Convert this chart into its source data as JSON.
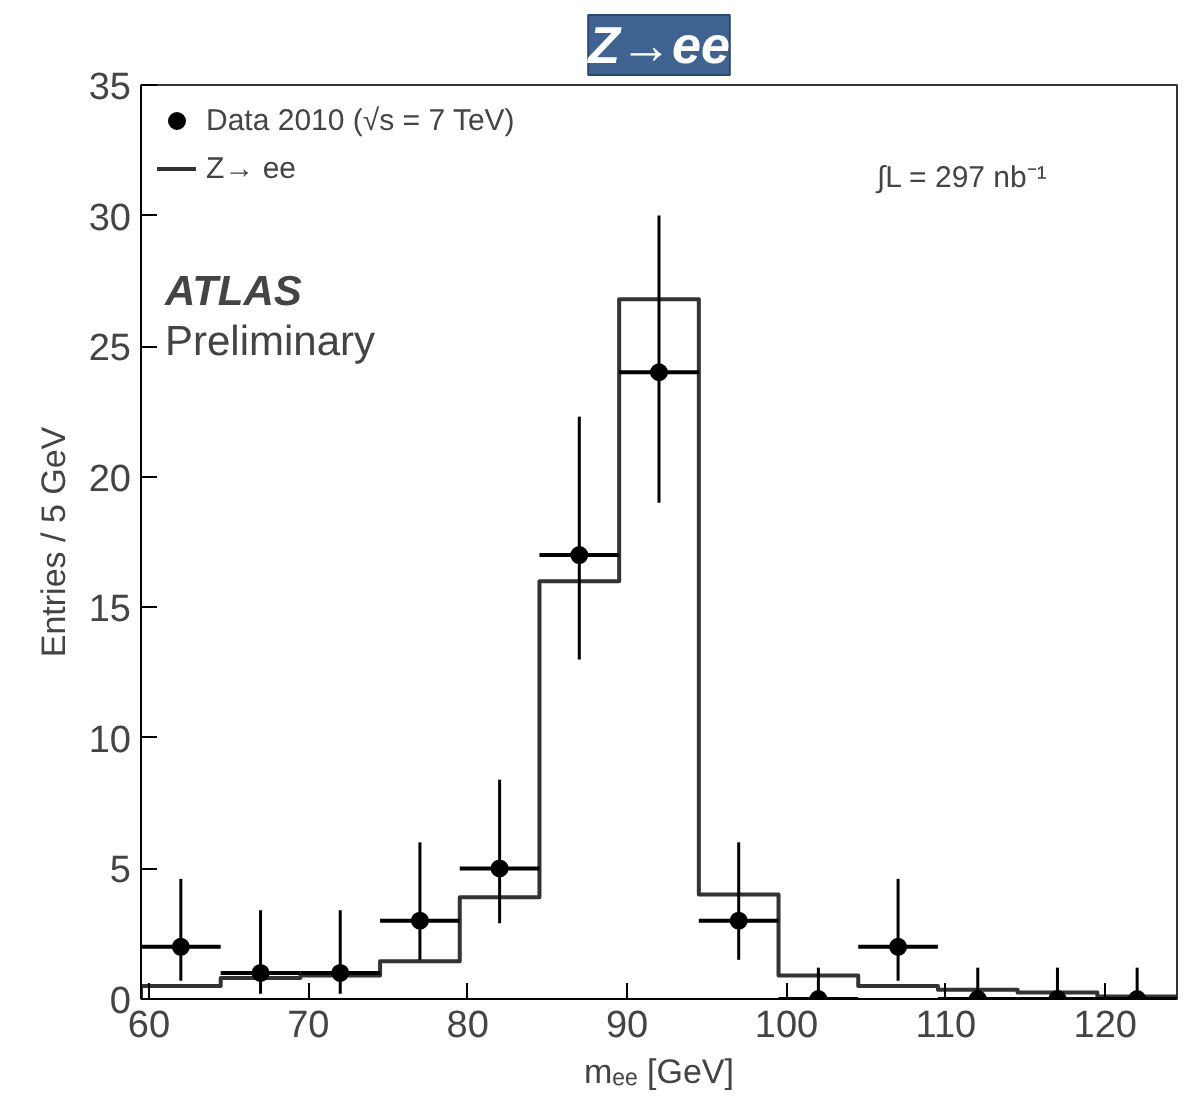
{
  "chart_data": {
    "type": "histogram",
    "title": "Z→ee",
    "xlabel": "mₑₑ [GeV]",
    "ylabel": "Entries / 5 GeV",
    "xlim": [
      59.5,
      124.5
    ],
    "xticks": [
      60,
      70,
      80,
      90,
      100,
      110,
      120
    ],
    "ylim": [
      0,
      35
    ],
    "yticks": [
      0,
      5,
      10,
      15,
      20,
      25,
      30,
      35
    ],
    "grid": false,
    "legend": "top left",
    "annotations": [
      "ATLAS",
      "Preliminary",
      "∫L = 297 nb⁻¹"
    ],
    "series": [
      {
        "name": "Z→ ee",
        "color": "#333333",
        "bins": [
          59.5,
          64.5,
          69.5,
          74.5,
          79.5,
          84.5,
          89.5,
          94.5,
          99.5,
          104.5,
          109.5,
          114.5,
          119.5,
          124.5
        ],
        "values": [
          0.5,
          0.8,
          0.9,
          1.45,
          3.9,
          16,
          26.8,
          4.0,
          0.9,
          0.5,
          0.35,
          0.25,
          0.1
        ]
      },
      {
        "type": "scatter",
        "name": "Data 2010 (√s = 7 TeV)",
        "color": "#000000",
        "marker": "circle",
        "x": [
          62,
          67,
          72,
          77,
          82,
          87,
          92,
          97,
          102,
          107,
          112,
          117,
          122
        ],
        "values": [
          2,
          1,
          1,
          3,
          5,
          17,
          24,
          3,
          0,
          2,
          0,
          0,
          0
        ],
        "errors": [
          [
            0.7,
            4.6
          ],
          [
            0.2,
            3.4
          ],
          [
            0.2,
            3.4
          ],
          [
            1.5,
            6
          ],
          [
            2.9,
            8.4
          ],
          [
            13,
            22.3
          ],
          [
            19,
            30
          ],
          [
            1.5,
            6
          ],
          [
            0,
            1.2
          ],
          [
            0.7,
            4.6
          ],
          [
            0,
            1.2
          ],
          [
            0,
            1.2
          ],
          [
            0,
            1.2
          ]
        ],
        "xerrors": [
          2.5,
          2.5,
          2.5,
          2.5,
          2.5,
          2.5,
          2.5,
          2.5,
          2.5,
          2.5,
          2.5,
          2.5,
          2.5
        ]
      }
    ]
  }
}
